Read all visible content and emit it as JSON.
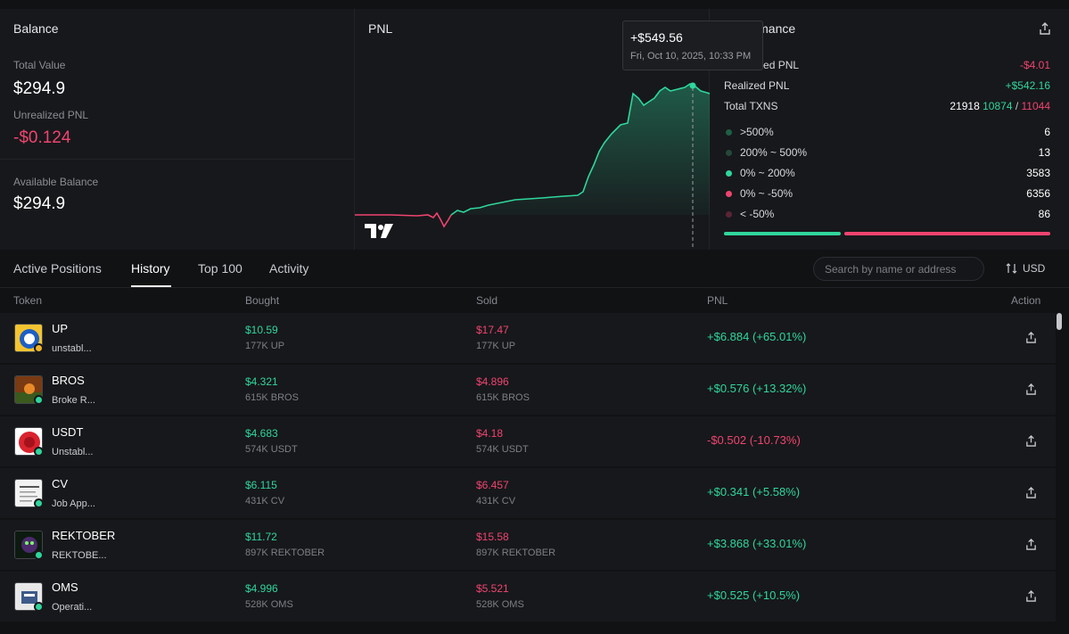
{
  "balance": {
    "title": "Balance",
    "total_value_label": "Total Value",
    "total_value": "$294.9",
    "unrealized_label": "Unrealized PNL",
    "unrealized_value": "-$0.124",
    "available_label": "Available Balance",
    "available_value": "$294.9"
  },
  "pnl_chart": {
    "title": "PNL",
    "tooltip_value": "+$549.56",
    "tooltip_date": "Fri, Oct 10, 2025, 10:33 PM"
  },
  "performance": {
    "title": "Performance",
    "unrealized_label": "Unrealized PNL",
    "unrealized_value": "-$4.01",
    "realized_label": "Realized PNL",
    "realized_value": "+$542.16",
    "txns_label": "Total TXNS",
    "txns_total": "21918",
    "txns_buy": "10874",
    "txns_slash": " / ",
    "txns_sell": "11044",
    "buckets": [
      {
        "label": ">500%",
        "count": "6",
        "color": "#1f5f46"
      },
      {
        "label": "200% ~ 500%",
        "count": "13",
        "color": "#24493b"
      },
      {
        "label": "0% ~ 200%",
        "count": "3583",
        "color": "#2fd69c"
      },
      {
        "label": "0% ~ -50%",
        "count": "6356",
        "color": "#ef4470"
      },
      {
        "label": "< -50%",
        "count": "86",
        "color": "#5a2535"
      }
    ],
    "win_fraction": 0.36
  },
  "tabs": [
    {
      "label": "Active Positions"
    },
    {
      "label": "History"
    },
    {
      "label": "Top 100"
    },
    {
      "label": "Activity"
    }
  ],
  "active_tab": "History",
  "search": {
    "placeholder": "Search by name or address"
  },
  "currency_label": "USD",
  "table": {
    "headers": {
      "token": "Token",
      "bought": "Bought",
      "sold": "Sold",
      "pnl": "PNL",
      "action": "Action"
    },
    "rows": [
      {
        "symbol": "UP",
        "name": "unstabl...",
        "bought": "$10.59",
        "bought_qty": "177K UP",
        "sold": "$17.47",
        "sold_qty": "177K UP",
        "pnl": "+$6.884 (+65.01%)",
        "positive": true,
        "icon": "up-token-icon"
      },
      {
        "symbol": "BROS",
        "name": "Broke R...",
        "bought": "$4.321",
        "bought_qty": "615K BROS",
        "sold": "$4.896",
        "sold_qty": "615K BROS",
        "pnl": "+$0.576 (+13.32%)",
        "positive": true,
        "icon": "bros-token-icon"
      },
      {
        "symbol": "USDT",
        "name": "Unstabl...",
        "bought": "$4.683",
        "bought_qty": "574K USDT",
        "sold": "$4.18",
        "sold_qty": "574K USDT",
        "pnl": "-$0.502 (-10.73%)",
        "positive": false,
        "icon": "usdt-token-icon"
      },
      {
        "symbol": "CV",
        "name": "Job App...",
        "bought": "$6.115",
        "bought_qty": "431K CV",
        "sold": "$6.457",
        "sold_qty": "431K CV",
        "pnl": "+$0.341 (+5.58%)",
        "positive": true,
        "icon": "cv-token-icon"
      },
      {
        "symbol": "REKTOBER",
        "name": "REKTOBE...",
        "bought": "$11.72",
        "bought_qty": "897K REKTOBER",
        "sold": "$15.58",
        "sold_qty": "897K REKTOBER",
        "pnl": "+$3.868 (+33.01%)",
        "positive": true,
        "icon": "rektober-token-icon"
      },
      {
        "symbol": "OMS",
        "name": "Operati...",
        "bought": "$4.996",
        "bought_qty": "528K OMS",
        "sold": "$5.521",
        "sold_qty": "528K OMS",
        "pnl": "+$0.525 (+10.5%)",
        "positive": true,
        "icon": "oms-token-icon"
      }
    ]
  },
  "colors": {
    "positive": "#2fd69c",
    "negative": "#ef4470",
    "background": "#111214",
    "panel": "#17181b"
  }
}
